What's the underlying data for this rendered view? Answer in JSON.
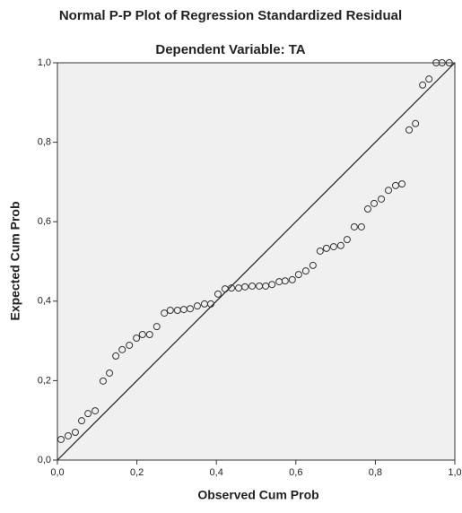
{
  "chart_data": {
    "type": "scatter",
    "title": "Normal P-P Plot of Regression Standardized Residual",
    "subtitle": "Dependent Variable: TA",
    "x_label": "Observed Cum Prob",
    "y_label": "Expected Cum Prob",
    "x": [
      0.009,
      0.027,
      0.045,
      0.061,
      0.077,
      0.095,
      0.115,
      0.131,
      0.147,
      0.163,
      0.181,
      0.199,
      0.214,
      0.232,
      0.25,
      0.269,
      0.284,
      0.302,
      0.318,
      0.334,
      0.352,
      0.37,
      0.386,
      0.404,
      0.422,
      0.438,
      0.456,
      0.472,
      0.49,
      0.508,
      0.524,
      0.54,
      0.558,
      0.573,
      0.591,
      0.607,
      0.625,
      0.643,
      0.661,
      0.677,
      0.695,
      0.713,
      0.729,
      0.747,
      0.765,
      0.781,
      0.797,
      0.815,
      0.833,
      0.851,
      0.867,
      0.885,
      0.901,
      0.919,
      0.935,
      0.953,
      0.968,
      0.986
    ],
    "values": [
      0.052,
      0.061,
      0.07,
      0.099,
      0.117,
      0.124,
      0.199,
      0.219,
      0.262,
      0.278,
      0.289,
      0.307,
      0.316,
      0.316,
      0.336,
      0.37,
      0.377,
      0.377,
      0.379,
      0.381,
      0.388,
      0.393,
      0.393,
      0.418,
      0.431,
      0.433,
      0.433,
      0.436,
      0.438,
      0.438,
      0.438,
      0.442,
      0.449,
      0.451,
      0.454,
      0.467,
      0.476,
      0.49,
      0.526,
      0.533,
      0.537,
      0.54,
      0.555,
      0.587,
      0.587,
      0.632,
      0.646,
      0.657,
      0.679,
      0.691,
      0.695,
      0.831,
      0.847,
      0.944,
      0.959,
      1.0,
      1.0,
      1.0
    ],
    "color": "#333333",
    "xlim": [
      0,
      1
    ],
    "ylim": [
      0,
      1
    ],
    "xticks": [
      {
        "value": 0,
        "label": "0,0"
      },
      {
        "value": 0.2,
        "label": "0,2"
      },
      {
        "value": 0.4,
        "label": "0,4"
      },
      {
        "value": 0.6,
        "label": "0,6"
      },
      {
        "value": 0.8,
        "label": "0,8"
      },
      {
        "value": 1,
        "label": "1,0"
      }
    ],
    "yticks": [
      {
        "value": 0,
        "label": "0,0"
      },
      {
        "value": 0.2,
        "label": "0,2"
      },
      {
        "value": 0.4,
        "label": "0,4"
      },
      {
        "value": 0.6,
        "label": "0,6"
      },
      {
        "value": 0.8,
        "label": "0,8"
      },
      {
        "value": 1,
        "label": "1,0"
      }
    ]
  }
}
